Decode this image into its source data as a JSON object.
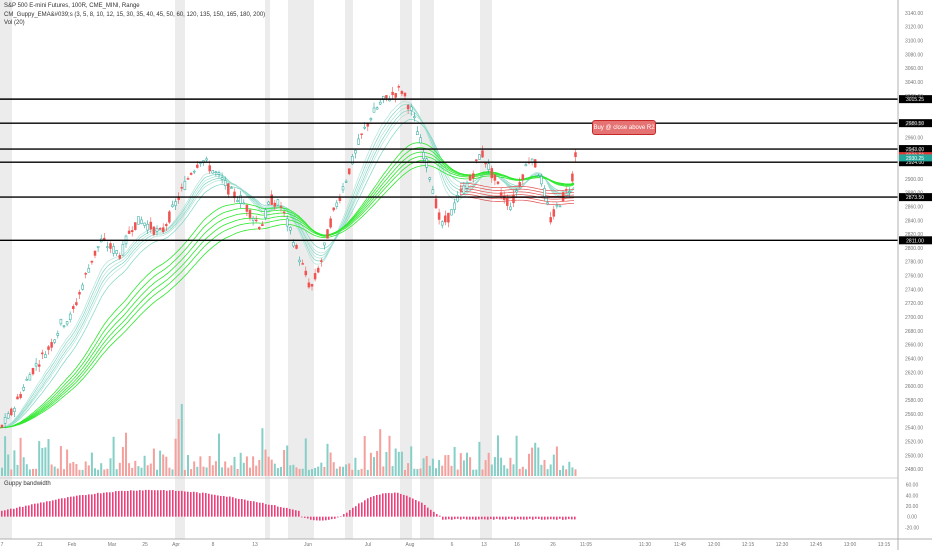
{
  "legend": {
    "title": "S&P 500 E-mini Futures, 100R, CME_MINI, Range",
    "indicator": "CM_Guppy_EMA&#039;s (3, 5, 8, 10, 12, 15, 30, 35, 40, 45, 50, 60, 120, 135, 150, 165, 180, 200)",
    "volume": "Vol (20)"
  },
  "sub_panel": {
    "title": "Guppy bandwidth"
  },
  "callout": {
    "text": "Buy @ close above R2"
  },
  "colors": {
    "up": "#26a69a",
    "down": "#ef5350",
    "guppy_fast": "#8fd4c8",
    "guppy_slow": "#2ee82e",
    "guppy_bear": "#e05050",
    "guppy_neutral": "#9e9e9e",
    "band_pos": "#ec407a",
    "band_neg": "#ec407a",
    "session_shade": "#ececec",
    "label_bg": "#000000"
  },
  "chart_data": [
    {
      "type": "candlestick",
      "title": "S&P 500 E-mini Futures, 100R, CME_MINI, Range",
      "x_tick_labels": [
        "7",
        "21",
        "Feb",
        "Mar",
        "25",
        "Apr",
        "8",
        "13",
        "Jun",
        "Jul",
        "Aug",
        "6",
        "13",
        "16",
        "26",
        "11:05",
        "11:30",
        "11:45",
        "12:00",
        "12:15",
        "12:30",
        "12:45",
        "13:00",
        "13:15"
      ],
      "y_tick_labels": [
        "3140.00",
        "3120.00",
        "3100.00",
        "3080.00",
        "3060.00",
        "3040.00",
        "3020.00",
        "2980.00",
        "2960.00",
        "2940.00",
        "2900.00",
        "2880.00",
        "2860.00",
        "2840.00",
        "2820.00",
        "2800.00",
        "2780.00",
        "2760.00",
        "2740.00",
        "2720.00",
        "2700.00",
        "2680.00",
        "2660.00",
        "2640.00",
        "2620.00",
        "2600.00",
        "2580.00",
        "2560.00",
        "2540.00",
        "2520.00",
        "2500.00",
        "2480.00"
      ],
      "ylim": [
        2470,
        3150
      ],
      "grid": false,
      "levels": [
        {
          "name": "R4",
          "value": 3015.25,
          "label": "3015.25"
        },
        {
          "name": "R3",
          "value": 2980.5,
          "label": "2980.50"
        },
        {
          "name": "R2",
          "value": 2943.0,
          "label": "2943.00"
        },
        {
          "name": "R1",
          "value": 2924.0,
          "label": "2924.00"
        },
        {
          "name": "S1",
          "value": 2873.5,
          "label": "2873.50"
        },
        {
          "name": "S2",
          "value": 2811.0,
          "label": "2811.00"
        }
      ],
      "price_tags": [
        {
          "value": 2933.5,
          "label": "2933.50",
          "color": "#e53935"
        },
        {
          "value": 2930.25,
          "label": "2930.25",
          "color": "#26a69a"
        }
      ],
      "close_path": [
        [
          0,
          2540
        ],
        [
          10,
          2560
        ],
        [
          20,
          2590
        ],
        [
          30,
          2620
        ],
        [
          40,
          2640
        ],
        [
          50,
          2660
        ],
        [
          60,
          2690
        ],
        [
          70,
          2700
        ],
        [
          80,
          2740
        ],
        [
          90,
          2780
        ],
        [
          100,
          2810
        ],
        [
          110,
          2800
        ],
        [
          120,
          2790
        ],
        [
          130,
          2830
        ],
        [
          140,
          2840
        ],
        [
          150,
          2830
        ],
        [
          160,
          2820
        ],
        [
          170,
          2850
        ],
        [
          180,
          2880
        ],
        [
          190,
          2910
        ],
        [
          200,
          2930
        ],
        [
          210,
          2915
        ],
        [
          220,
          2900
        ],
        [
          230,
          2880
        ],
        [
          240,
          2870
        ],
        [
          250,
          2850
        ],
        [
          260,
          2830
        ],
        [
          270,
          2870
        ],
        [
          280,
          2860
        ],
        [
          290,
          2820
        ],
        [
          300,
          2780
        ],
        [
          310,
          2740
        ],
        [
          320,
          2780
        ],
        [
          330,
          2840
        ],
        [
          340,
          2880
        ],
        [
          350,
          2920
        ],
        [
          360,
          2960
        ],
        [
          370,
          2990
        ],
        [
          380,
          3010
        ],
        [
          390,
          3020
        ],
        [
          400,
          3030
        ],
        [
          410,
          3000
        ],
        [
          420,
          2950
        ],
        [
          430,
          2900
        ],
        [
          440,
          2830
        ],
        [
          450,
          2850
        ],
        [
          460,
          2880
        ],
        [
          470,
          2900
        ],
        [
          480,
          2940
        ],
        [
          490,
          2910
        ],
        [
          500,
          2880
        ],
        [
          510,
          2860
        ],
        [
          520,
          2900
        ],
        [
          530,
          2935
        ],
        [
          540,
          2900
        ],
        [
          550,
          2840
        ],
        [
          560,
          2870
        ],
        [
          570,
          2890
        ],
        [
          575,
          2942
        ]
      ]
    },
    {
      "type": "bar",
      "title": "Vol (20)",
      "note": "volume histogram, colored by candle direction"
    },
    {
      "type": "area",
      "title": "Guppy bandwidth",
      "y_tick_labels": [
        "60.00",
        "40.00",
        "20.00",
        "0.00",
        "-20.00"
      ],
      "ylim": [
        -25,
        65
      ]
    }
  ],
  "axis_scales": {
    "price": {
      "min": 2470,
      "max": 3150
    },
    "bandwidth": {
      "min": -25,
      "max": 65
    }
  }
}
